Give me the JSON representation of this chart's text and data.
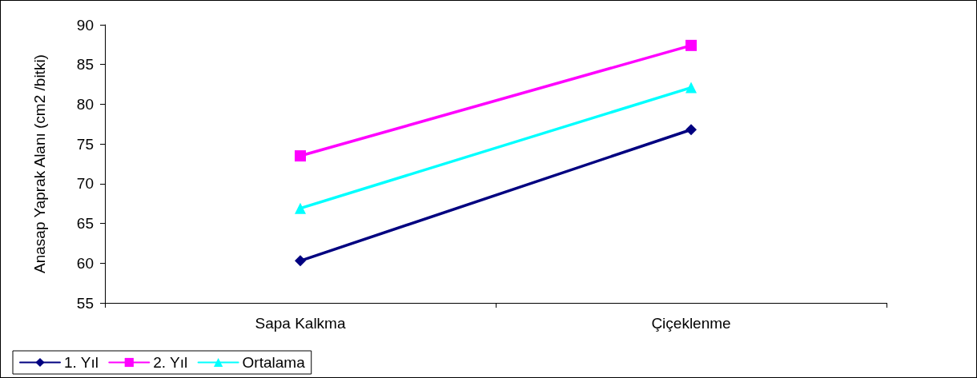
{
  "chart_data": {
    "type": "line",
    "ylabel": "Anasap Yaprak Alanı (cm2 /bitki)",
    "categories": [
      "Sapa Kalkma",
      "Çiçeklenme"
    ],
    "series": [
      {
        "name": "1. Yıl",
        "color": "#000080",
        "marker": "diamond",
        "values": [
          60.3,
          76.8
        ]
      },
      {
        "name": "2. Yıl",
        "color": "#ff00ff",
        "marker": "square",
        "values": [
          73.5,
          87.4
        ]
      },
      {
        "name": "Ortalama",
        "color": "#00ffff",
        "marker": "triangle",
        "values": [
          66.9,
          82.1
        ]
      }
    ],
    "ylim": [
      55,
      90
    ],
    "yticks": [
      55,
      60,
      65,
      70,
      75,
      80,
      85,
      90
    ],
    "grid": false,
    "legend": "bottom left",
    "line_style": "solid"
  }
}
